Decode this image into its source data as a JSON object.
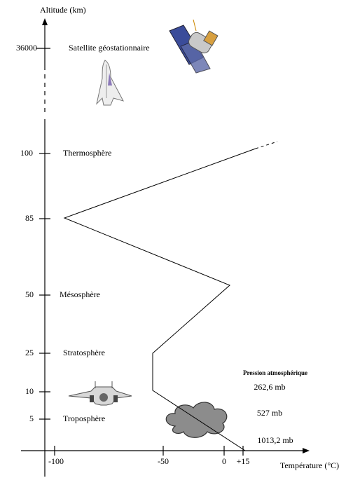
{
  "axes": {
    "y_title": "Altitude (km)",
    "x_title": "Température (°C)",
    "y_ticks": [
      "36000",
      "100",
      "85",
      "50",
      "25",
      "10",
      "5"
    ],
    "x_ticks": [
      "-100",
      "-50",
      "0",
      "+15"
    ]
  },
  "layers": [
    "Satellite géostationnaire",
    "Thermosphère",
    "Mésosphère",
    "Stratosphère",
    "Troposphère"
  ],
  "pressure": {
    "title": "Pression atmosphérique",
    "values": [
      "262,6 mb",
      "527 mb",
      "1013,2 mb"
    ]
  }
}
